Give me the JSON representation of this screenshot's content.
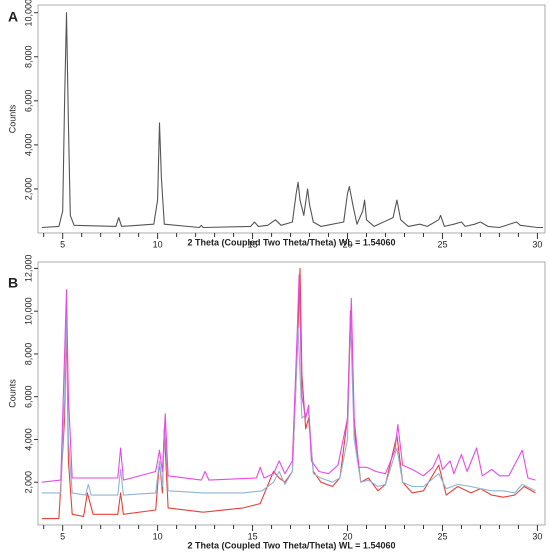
{
  "chart_data": [
    {
      "type": "line",
      "panel_label": "A",
      "y_label": "Counts",
      "x_label": "2 Theta (Coupled Two Theta/Theta) WL = 1.54060",
      "xlim": [
        3.7,
        30.4
      ],
      "xticks": [
        5,
        10,
        15,
        20,
        25,
        30
      ],
      "xminorticks": [
        4,
        6,
        7,
        8,
        9,
        11,
        12,
        13,
        14,
        16,
        17,
        18,
        19,
        21,
        22,
        23,
        24,
        26,
        27,
        28,
        29
      ],
      "ylim": [
        0,
        10350
      ],
      "yticks": [
        {
          "value": 2000,
          "label": "2,000"
        },
        {
          "value": 4000,
          "label": "4,000"
        },
        {
          "value": 6000,
          "label": "6,000"
        },
        {
          "value": 8000,
          "label": "8,000"
        },
        {
          "value": 10000,
          "label": "10,000"
        }
      ],
      "series": [
        {
          "color": "#555555",
          "x": [
            3.9,
            4.8,
            5.0,
            5.1,
            5.2,
            5.3,
            5.4,
            5.6,
            7.8,
            7.95,
            8.1,
            9.8,
            10.0,
            10.1,
            10.2,
            10.35,
            12.2,
            12.3,
            12.4,
            14.9,
            15.1,
            15.3,
            15.8,
            16.2,
            16.5,
            17.1,
            17.3,
            17.4,
            17.5,
            17.7,
            17.9,
            18.0,
            18.2,
            18.6,
            19.8,
            20.0,
            20.1,
            20.3,
            20.5,
            20.8,
            20.9,
            21.0,
            21.4,
            22.4,
            22.6,
            22.8,
            23.2,
            23.8,
            24.2,
            24.8,
            24.9,
            25.1,
            25.6,
            26.0,
            26.2,
            26.7,
            27.0,
            27.4,
            28.0,
            28.9,
            29.1,
            30.0,
            30.3
          ],
          "values": [
            250,
            300,
            1000,
            6000,
            10000,
            5000,
            800,
            350,
            300,
            700,
            300,
            400,
            1500,
            5000,
            2500,
            400,
            250,
            350,
            250,
            300,
            500,
            300,
            350,
            600,
            350,
            500,
            1800,
            2300,
            1500,
            800,
            2000,
            1300,
            500,
            300,
            500,
            1800,
            2100,
            1200,
            400,
            1000,
            1500,
            600,
            300,
            700,
            1500,
            600,
            300,
            400,
            300,
            600,
            800,
            300,
            400,
            500,
            300,
            400,
            500,
            300,
            250,
            500,
            350,
            250,
            250
          ]
        }
      ]
    },
    {
      "type": "line",
      "panel_label": "B",
      "y_label": "Counts",
      "x_label": "2 Theta (Coupled Two Theta/Theta) WL = 1.54060",
      "xlim": [
        3.7,
        30.4
      ],
      "xticks": [
        5,
        10,
        15,
        20,
        25,
        30
      ],
      "xminorticks": [
        4,
        6,
        7,
        8,
        9,
        11,
        12,
        13,
        14,
        16,
        17,
        18,
        19,
        21,
        22,
        23,
        24,
        26,
        27,
        28,
        29
      ],
      "ylim": [
        0,
        12300
      ],
      "yticks": [
        {
          "value": 2000,
          "label": "2,000"
        },
        {
          "value": 4000,
          "label": "4,000"
        },
        {
          "value": 6000,
          "label": "6,000"
        },
        {
          "value": 8000,
          "label": "8,000"
        },
        {
          "value": 10000,
          "label": "10,000"
        },
        {
          "value": 12000,
          "label": "12,000"
        }
      ],
      "series": [
        {
          "color": "#e8403a",
          "x": [
            3.9,
            4.8,
            5.1,
            5.2,
            5.3,
            5.5,
            6.1,
            6.3,
            6.6,
            7.9,
            8.05,
            8.2,
            9.9,
            10.1,
            10.25,
            10.35,
            10.55,
            12.4,
            14.5,
            15.4,
            16.1,
            16.4,
            16.7,
            17.1,
            17.35,
            17.5,
            17.6,
            17.8,
            17.95,
            18.2,
            18.6,
            19.2,
            19.6,
            20.0,
            20.15,
            20.35,
            20.7,
            21.1,
            21.6,
            22.0,
            22.6,
            22.9,
            23.4,
            24.0,
            24.8,
            25.2,
            25.8,
            26.5,
            27.0,
            27.6,
            28.2,
            28.8,
            29.3,
            29.9
          ],
          "values": [
            300,
            300,
            5000,
            9500,
            3000,
            500,
            400,
            1500,
            500,
            500,
            1500,
            500,
            700,
            3000,
            1500,
            4500,
            800,
            600,
            800,
            1000,
            2500,
            2200,
            2000,
            2500,
            8000,
            12000,
            7000,
            4500,
            5000,
            2500,
            2000,
            1800,
            2200,
            5000,
            10000,
            4500,
            2000,
            2200,
            1600,
            1900,
            4200,
            2000,
            1500,
            1600,
            2800,
            1400,
            1800,
            1500,
            1700,
            1400,
            1300,
            1400,
            1800,
            1500
          ]
        },
        {
          "color": "#8fb4d6",
          "x": [
            3.9,
            4.9,
            5.1,
            5.2,
            5.3,
            5.5,
            6.2,
            6.35,
            6.5,
            7.9,
            8.05,
            8.2,
            9.9,
            10.1,
            10.25,
            10.4,
            10.55,
            12.4,
            14.5,
            15.5,
            16.1,
            16.4,
            16.7,
            17.1,
            17.4,
            17.6,
            17.95,
            18.2,
            18.6,
            19.2,
            19.6,
            20.0,
            20.15,
            20.35,
            20.7,
            21.1,
            21.6,
            22.0,
            22.6,
            22.9,
            23.4,
            24.0,
            24.8,
            25.2,
            25.8,
            26.5,
            27.0,
            27.6,
            28.2,
            28.8,
            29.2,
            29.9
          ],
          "values": [
            1500,
            1500,
            6000,
            10000,
            4000,
            1500,
            1400,
            1900,
            1400,
            1400,
            2600,
            1400,
            1500,
            3000,
            1800,
            5000,
            1600,
            1500,
            1500,
            1600,
            2000,
            2500,
            1900,
            2500,
            9200,
            5000,
            5300,
            2400,
            2200,
            2000,
            2200,
            4000,
            9700,
            4000,
            2000,
            2100,
            1800,
            1900,
            3600,
            2000,
            1800,
            1800,
            2400,
            1700,
            1900,
            1800,
            1700,
            1600,
            1600,
            1500,
            1900,
            1600
          ]
        },
        {
          "color": "#e64ae6",
          "x": [
            3.9,
            4.9,
            5.1,
            5.2,
            5.3,
            5.5,
            7.9,
            8.05,
            8.2,
            9.9,
            10.1,
            10.25,
            10.4,
            10.55,
            12.3,
            12.5,
            12.7,
            15.2,
            15.4,
            15.6,
            16.1,
            16.4,
            16.7,
            17.1,
            17.35,
            17.45,
            17.6,
            17.8,
            17.95,
            18.1,
            18.5,
            19.0,
            19.5,
            20.0,
            20.2,
            20.35,
            20.6,
            21.0,
            21.5,
            22.0,
            22.5,
            22.65,
            22.9,
            23.4,
            24.0,
            24.5,
            24.8,
            25.0,
            25.4,
            25.6,
            26.0,
            26.3,
            26.8,
            27.1,
            27.6,
            28.0,
            28.5,
            29.2,
            29.5,
            29.9
          ],
          "values": [
            2000,
            2100,
            8000,
            11000,
            6000,
            2200,
            2200,
            3600,
            2100,
            2500,
            3500,
            2500,
            5200,
            2300,
            2100,
            2500,
            2100,
            2200,
            2700,
            2200,
            2400,
            3000,
            2400,
            3000,
            9000,
            11700,
            6000,
            5000,
            5600,
            3000,
            2500,
            2400,
            2800,
            5000,
            10600,
            5000,
            2700,
            2700,
            2500,
            2400,
            3500,
            4700,
            2800,
            2600,
            2300,
            2700,
            3300,
            2600,
            3000,
            2400,
            3300,
            2500,
            3600,
            2300,
            2600,
            2300,
            2300,
            3500,
            2200,
            2100
          ]
        }
      ]
    }
  ]
}
